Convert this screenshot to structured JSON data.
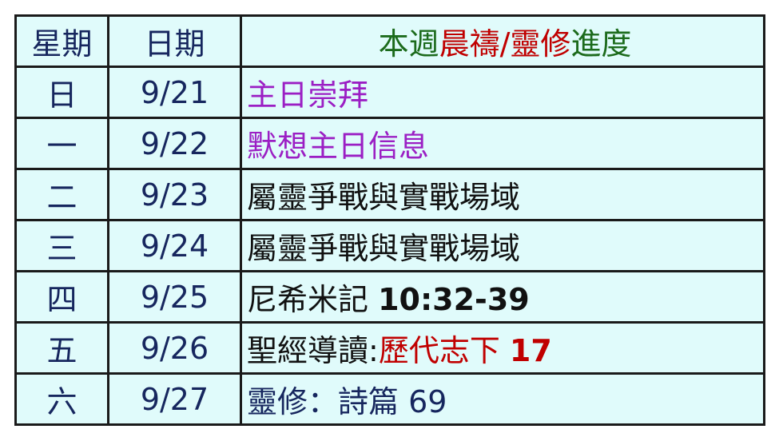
{
  "colors": {
    "navy": "#16265e",
    "green": "#1c6b1c",
    "red": "#c00000",
    "purple": "#9b1fc4",
    "black": "#111111",
    "background": "#e0fbfb"
  },
  "header": {
    "weekday": "星期",
    "date": "日期",
    "progress": [
      {
        "text": "本週",
        "color": "#1c6b1c"
      },
      {
        "text": "晨禱/靈修",
        "color": "#c00000"
      },
      {
        "text": "進度",
        "color": "#1c6b1c"
      }
    ]
  },
  "rows": [
    {
      "weekday": "日",
      "date": "9/21",
      "segments": [
        {
          "text": "主日崇拜",
          "color": "#9b1fc4"
        }
      ]
    },
    {
      "weekday": "一",
      "date": "9/22",
      "segments": [
        {
          "text": "默想主日信息",
          "color": "#9b1fc4"
        }
      ]
    },
    {
      "weekday": "二",
      "date": "9/23",
      "segments": [
        {
          "text": "屬靈爭戰與實戰場域",
          "color": "#111111"
        }
      ]
    },
    {
      "weekday": "三",
      "date": "9/24",
      "segments": [
        {
          "text": "屬靈爭戰與實戰場域",
          "color": "#111111"
        }
      ]
    },
    {
      "weekday": "四",
      "date": "9/25",
      "segments": [
        {
          "text": "尼希米記 ",
          "color": "#111111"
        },
        {
          "text": "10:32-39",
          "color": "#111111",
          "bold": true
        }
      ]
    },
    {
      "weekday": "五",
      "date": "9/26",
      "segments": [
        {
          "text": "聖經導讀:",
          "color": "#111111"
        },
        {
          "text": "歷代志下 ",
          "color": "#c00000"
        },
        {
          "text": "17",
          "color": "#c00000",
          "bold": true
        }
      ]
    },
    {
      "weekday": "六",
      "date": "9/27",
      "segments": [
        {
          "text": "靈修：詩篇 69",
          "color": "#16265e"
        }
      ]
    }
  ]
}
